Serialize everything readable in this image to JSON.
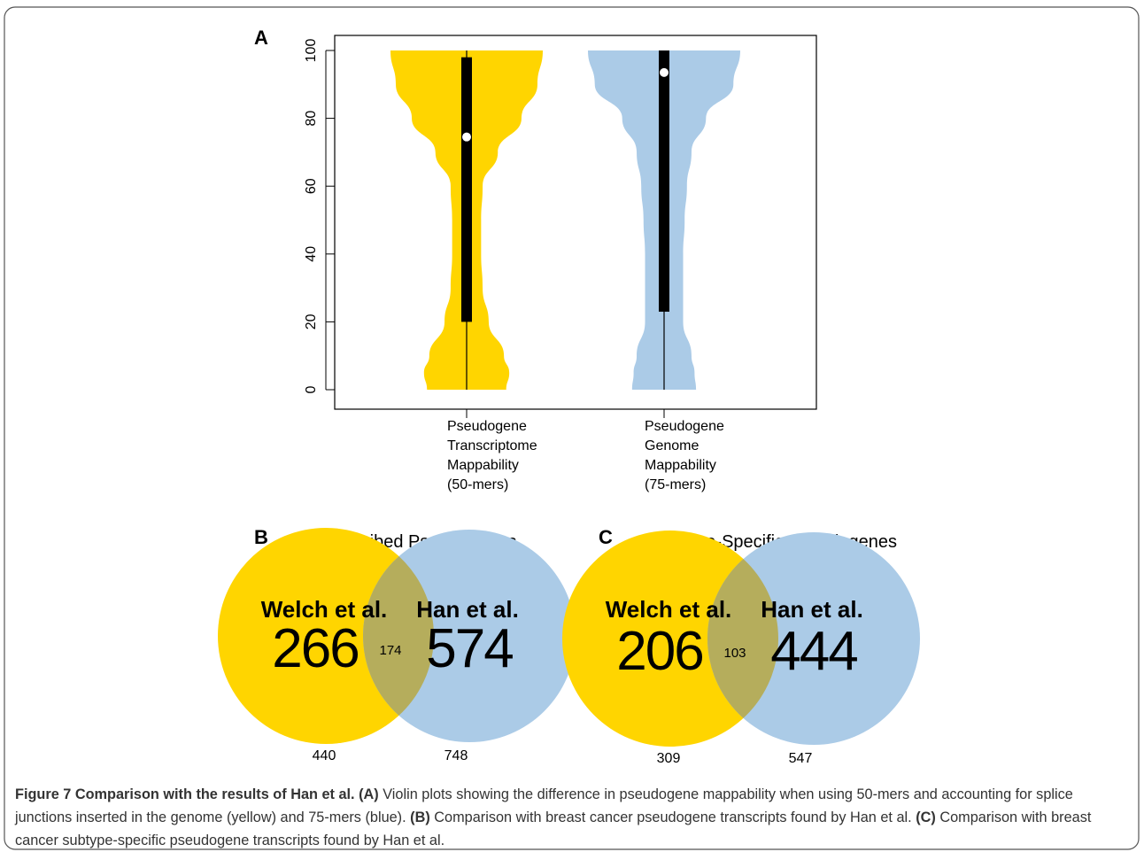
{
  "chart_data": [
    {
      "type": "violin",
      "panel": "A",
      "categories": [
        [
          "Pseudogene",
          "Transcriptome",
          "Mappability",
          "(50-mers)"
        ],
        [
          "Pseudogene",
          "Genome",
          "Mappability",
          "(75-mers)"
        ]
      ],
      "ylim": [
        0,
        100
      ],
      "yticks": [
        0,
        20,
        40,
        60,
        80,
        100
      ],
      "density_y": [
        0,
        5,
        10,
        20,
        30,
        40,
        50,
        60,
        70,
        80,
        90,
        100
      ],
      "series": [
        {
          "color": "#ffd500",
          "min": 0,
          "q1": 20,
          "median": 74.5,
          "q3": 98,
          "max": 100,
          "density": [
            0.52,
            0.56,
            0.49,
            0.29,
            0.21,
            0.19,
            0.19,
            0.21,
            0.41,
            0.72,
            0.93,
            1.0
          ]
        },
        {
          "color": "#abcbe7",
          "min": 0,
          "q1": 23,
          "median": 93.5,
          "q3": 100,
          "max": 100,
          "density": [
            0.42,
            0.4,
            0.36,
            0.25,
            0.25,
            0.25,
            0.27,
            0.3,
            0.36,
            0.55,
            0.91,
            1.0
          ]
        }
      ]
    },
    {
      "type": "venn",
      "panel": "B",
      "title": "Transcribed Pseudogenes",
      "sets": [
        {
          "name": "Welch et al.",
          "color": "#ffd500",
          "total": 440,
          "unique": 266
        },
        {
          "name": "Han et al.",
          "color": "#abcbe7",
          "total": 748,
          "unique": 574
        }
      ],
      "overlap": 174,
      "overlap_color": "#b5ad5c"
    },
    {
      "type": "venn",
      "panel": "C",
      "title": "Subtype-Specific Pseudogenes",
      "sets": [
        {
          "name": "Welch et al.",
          "color": "#ffd500",
          "total": 309,
          "unique": 206
        },
        {
          "name": "Han et al.",
          "color": "#abcbe7",
          "total": 547,
          "unique": 444
        }
      ],
      "overlap": 103,
      "overlap_color": "#b5ad5c"
    }
  ],
  "caption": {
    "segments": [
      {
        "bold": true,
        "text": "Figure 7 Comparison with the results of Han et al. (A)"
      },
      {
        "bold": false,
        "text": " Violin plots showing the difference in pseudogene mappability when using 50-mers and accounting for splice junctions inserted in the genome (yellow) and 75-mers (blue). "
      },
      {
        "bold": true,
        "text": "(B)"
      },
      {
        "bold": false,
        "text": " Comparison with breast cancer pseudogene transcripts found by Han et al. "
      },
      {
        "bold": true,
        "text": "(C)"
      },
      {
        "bold": false,
        "text": " Comparison with breast cancer subtype-specific pseudogene transcripts found by Han et al."
      }
    ]
  }
}
